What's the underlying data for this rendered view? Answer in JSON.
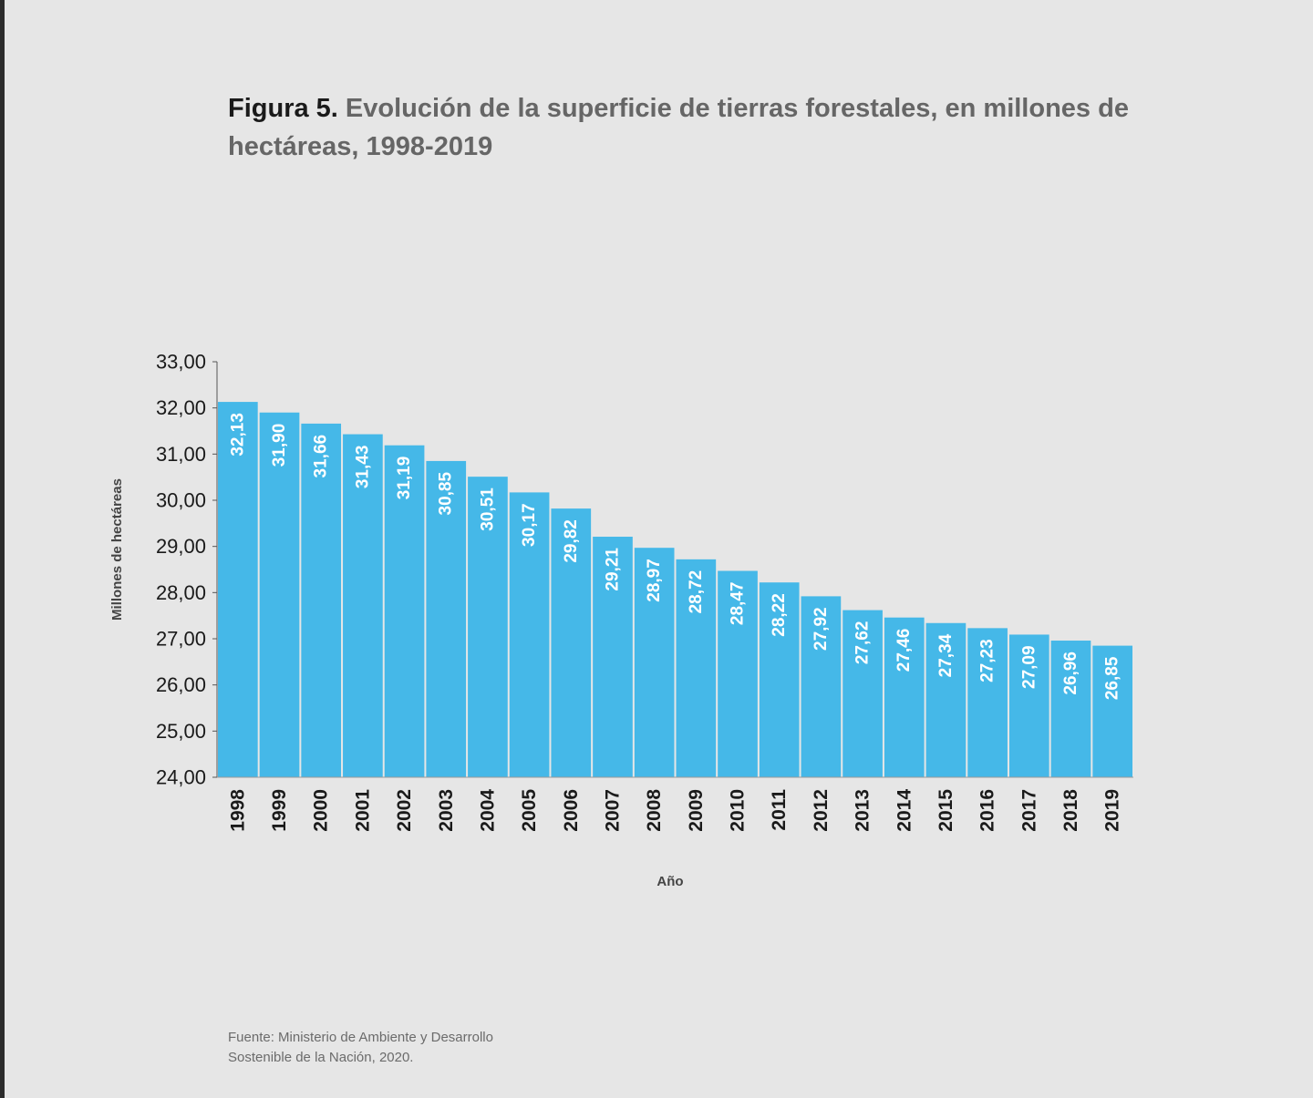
{
  "figure": {
    "label": "Figura 5.",
    "title": "Evolución de la superficie de tierras forestales, en millones de hectáreas, 1998-2019",
    "source_line1": "Fuente: Ministerio de Ambiente y Desarrollo",
    "source_line2": "Sostenible de la Nación, 2020."
  },
  "colors": {
    "bar": "#45b8e8",
    "background": "#e6e6e6"
  },
  "chart_data": {
    "type": "bar",
    "categories": [
      "1998",
      "1999",
      "2000",
      "2001",
      "2002",
      "2003",
      "2004",
      "2005",
      "2006",
      "2007",
      "2008",
      "2009",
      "2010",
      "2011",
      "2012",
      "2013",
      "2014",
      "2015",
      "2016",
      "2017",
      "2018",
      "2019"
    ],
    "values": [
      32.13,
      31.9,
      31.66,
      31.43,
      31.19,
      30.85,
      30.51,
      30.17,
      29.82,
      29.21,
      28.97,
      28.72,
      28.47,
      28.22,
      27.92,
      27.62,
      27.46,
      27.34,
      27.23,
      27.09,
      26.96,
      26.85
    ],
    "data_labels": [
      "32,13",
      "31,90",
      "31,66",
      "31,43",
      "31,19",
      "30,85",
      "30,51",
      "30,17",
      "29,82",
      "29,21",
      "28,97",
      "28,72",
      "28,47",
      "28,22",
      "27,92",
      "27,62",
      "27,46",
      "27,34",
      "27,23",
      "27,09",
      "26,96",
      "26,85"
    ],
    "ylim": [
      24,
      33
    ],
    "yticks": [
      24,
      25,
      26,
      27,
      28,
      29,
      30,
      31,
      32,
      33
    ],
    "ytick_labels": [
      "24,00",
      "25,00",
      "26,00",
      "27,00",
      "28,00",
      "29,00",
      "30,00",
      "31,00",
      "32,00",
      "33,00"
    ],
    "xlabel": "Año",
    "ylabel": "Millones de hectáreas",
    "grid": false,
    "legend": "none"
  }
}
